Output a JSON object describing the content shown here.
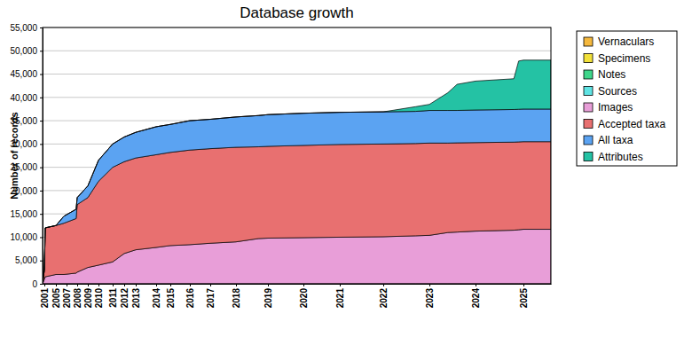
{
  "chart_data": {
    "type": "area",
    "title": "Database growth",
    "ylabel": "Number of records",
    "x": [
      2000.8,
      2001,
      2001.3,
      2005,
      2006.5,
      2007.9,
      2008,
      2009,
      2010,
      2011,
      2012,
      2013,
      2014,
      2015,
      2016,
      2017,
      2018,
      2018.7,
      2019,
      2020,
      2021,
      2022,
      2022.7,
      2023,
      2023.4,
      2023.6,
      2024,
      2024.8,
      2024.9,
      2025,
      2025.7
    ],
    "series": [
      {
        "name": "Vernaculars",
        "color": "#f5b83d",
        "values": [
          0,
          0,
          0,
          0,
          0,
          0,
          0,
          0,
          0,
          0,
          0,
          0,
          0,
          0,
          0,
          0,
          0,
          0,
          0,
          0,
          0,
          0,
          0,
          0,
          0,
          0,
          0,
          0,
          0,
          0,
          0
        ]
      },
      {
        "name": "Specimens",
        "color": "#f2e13a",
        "values": [
          0,
          0,
          0,
          0,
          0,
          0,
          0,
          0,
          0,
          0,
          0,
          0,
          0,
          0,
          0,
          0,
          0,
          0,
          0,
          0,
          0,
          0,
          0,
          0,
          0,
          0,
          0,
          0,
          0,
          0,
          0
        ]
      },
      {
        "name": "Notes",
        "color": "#3fd68a",
        "values": [
          0,
          0,
          0,
          0,
          0,
          0,
          0,
          0,
          0,
          0,
          0,
          0,
          0,
          0,
          0,
          0,
          0,
          0,
          0,
          0,
          0,
          0,
          0,
          0,
          0,
          0,
          0,
          0,
          0,
          0,
          0
        ]
      },
      {
        "name": "Sources",
        "color": "#5fe3e3",
        "values": [
          0,
          0,
          0,
          0,
          0,
          0,
          0,
          0,
          0,
          0,
          0,
          0,
          0,
          0,
          0,
          0,
          0,
          0,
          0,
          0,
          0,
          0,
          0,
          0,
          0,
          0,
          0,
          0,
          0,
          0,
          0
        ]
      },
      {
        "name": "Images",
        "color": "#e89ed8",
        "values": [
          0,
          1000,
          1500,
          2000,
          2000,
          2300,
          2500,
          3500,
          4000,
          4700,
          6500,
          7300,
          7800,
          8200,
          8400,
          8700,
          9000,
          9700,
          9800,
          9900,
          10000,
          10100,
          10300,
          10400,
          11000,
          11100,
          11300,
          11500,
          11600,
          11700,
          11700
        ]
      },
      {
        "name": "Accepted taxa",
        "color": "#e87070",
        "values": [
          0,
          2000,
          10500,
          10500,
          11000,
          11700,
          14500,
          15000,
          18000,
          20300,
          19700,
          19700,
          19900,
          20000,
          20300,
          20300,
          20300,
          19700,
          19700,
          19800,
          19900,
          19900,
          19800,
          19800,
          19200,
          19150,
          19000,
          18900,
          18850,
          18800,
          18800
        ]
      },
      {
        "name": "All taxa",
        "color": "#5ba3f2",
        "values": [
          0,
          0,
          0,
          0,
          1500,
          2000,
          1500,
          2500,
          4500,
          5000,
          5300,
          5500,
          6000,
          6000,
          6300,
          6300,
          6500,
          6700,
          6800,
          6900,
          6900,
          6900,
          6900,
          7000,
          7000,
          6950,
          7000,
          7000,
          7000,
          7000,
          7000
        ]
      },
      {
        "name": "Attributes",
        "color": "#24c2a4",
        "values": [
          0,
          0,
          0,
          0,
          0,
          0,
          0,
          0,
          0,
          0,
          0,
          0,
          0,
          0,
          0,
          0,
          0,
          0,
          0,
          0,
          0,
          0,
          1000,
          1300,
          3800,
          5600,
          6200,
          6600,
          10350,
          10500,
          10500
        ]
      }
    ],
    "xlim": [
      2000.8,
      2025.7
    ],
    "xticks": [
      2001,
      2005,
      2007,
      2008,
      2009,
      2010,
      2011,
      2012,
      2013,
      2014,
      2015,
      2016,
      2017,
      2018,
      2019,
      2020,
      2021,
      2022,
      2023,
      2024,
      2025
    ],
    "ylim": [
      0,
      55000
    ],
    "yticks": [
      0,
      {
        "value": 5000,
        "label": "5,000"
      },
      {
        "value": 10000,
        "label": "10,000"
      },
      {
        "value": 15000,
        "label": "15,000"
      },
      {
        "value": 20000,
        "label": "20,000"
      },
      {
        "value": 25000,
        "label": "25,000"
      },
      {
        "value": 30000,
        "label": "30,000"
      },
      {
        "value": 35000,
        "label": "35,000"
      },
      {
        "value": 40000,
        "label": "40,000"
      },
      {
        "value": 45000,
        "label": "45,000"
      },
      {
        "value": 50000,
        "label": "50,000"
      },
      {
        "value": 55000,
        "label": "55,000"
      }
    ],
    "grid": true,
    "stacked": true,
    "legend": "right"
  }
}
